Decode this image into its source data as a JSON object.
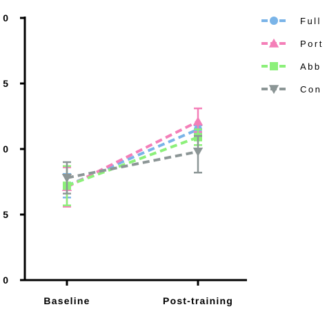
{
  "chart_data": {
    "type": "line",
    "title": "",
    "xlabel": "",
    "ylabel": "",
    "categories": [
      "Baseline",
      "Post-training"
    ],
    "y_tick_labels": [
      "0",
      "5",
      "0",
      "5",
      "0"
    ],
    "ylim": [
      0,
      2
    ],
    "grid": false,
    "legend_position": "right",
    "series": [
      {
        "name": "Full",
        "color": "#7ab4e8",
        "marker": "circle",
        "values": [
          0.72,
          1.15
        ],
        "err_low": [
          0.09,
          0.03
        ],
        "err_high": [
          0.09,
          0.03
        ]
      },
      {
        "name": "Port",
        "color": "#f47fb8",
        "marker": "triangle-up",
        "values": [
          0.71,
          1.21
        ],
        "err_low": [
          0.15,
          0.08
        ],
        "err_high": [
          0.15,
          0.1
        ]
      },
      {
        "name": "Abb",
        "color": "#8cf07a",
        "marker": "square",
        "values": [
          0.72,
          1.09
        ],
        "err_low": [
          0.15,
          0.06
        ],
        "err_high": [
          0.15,
          0.06
        ]
      },
      {
        "name": "Con",
        "color": "#8c9696",
        "marker": "triangle-down",
        "values": [
          0.78,
          0.98
        ],
        "err_low": [
          0.12,
          0.16
        ],
        "err_high": [
          0.12,
          0.12
        ]
      }
    ]
  }
}
